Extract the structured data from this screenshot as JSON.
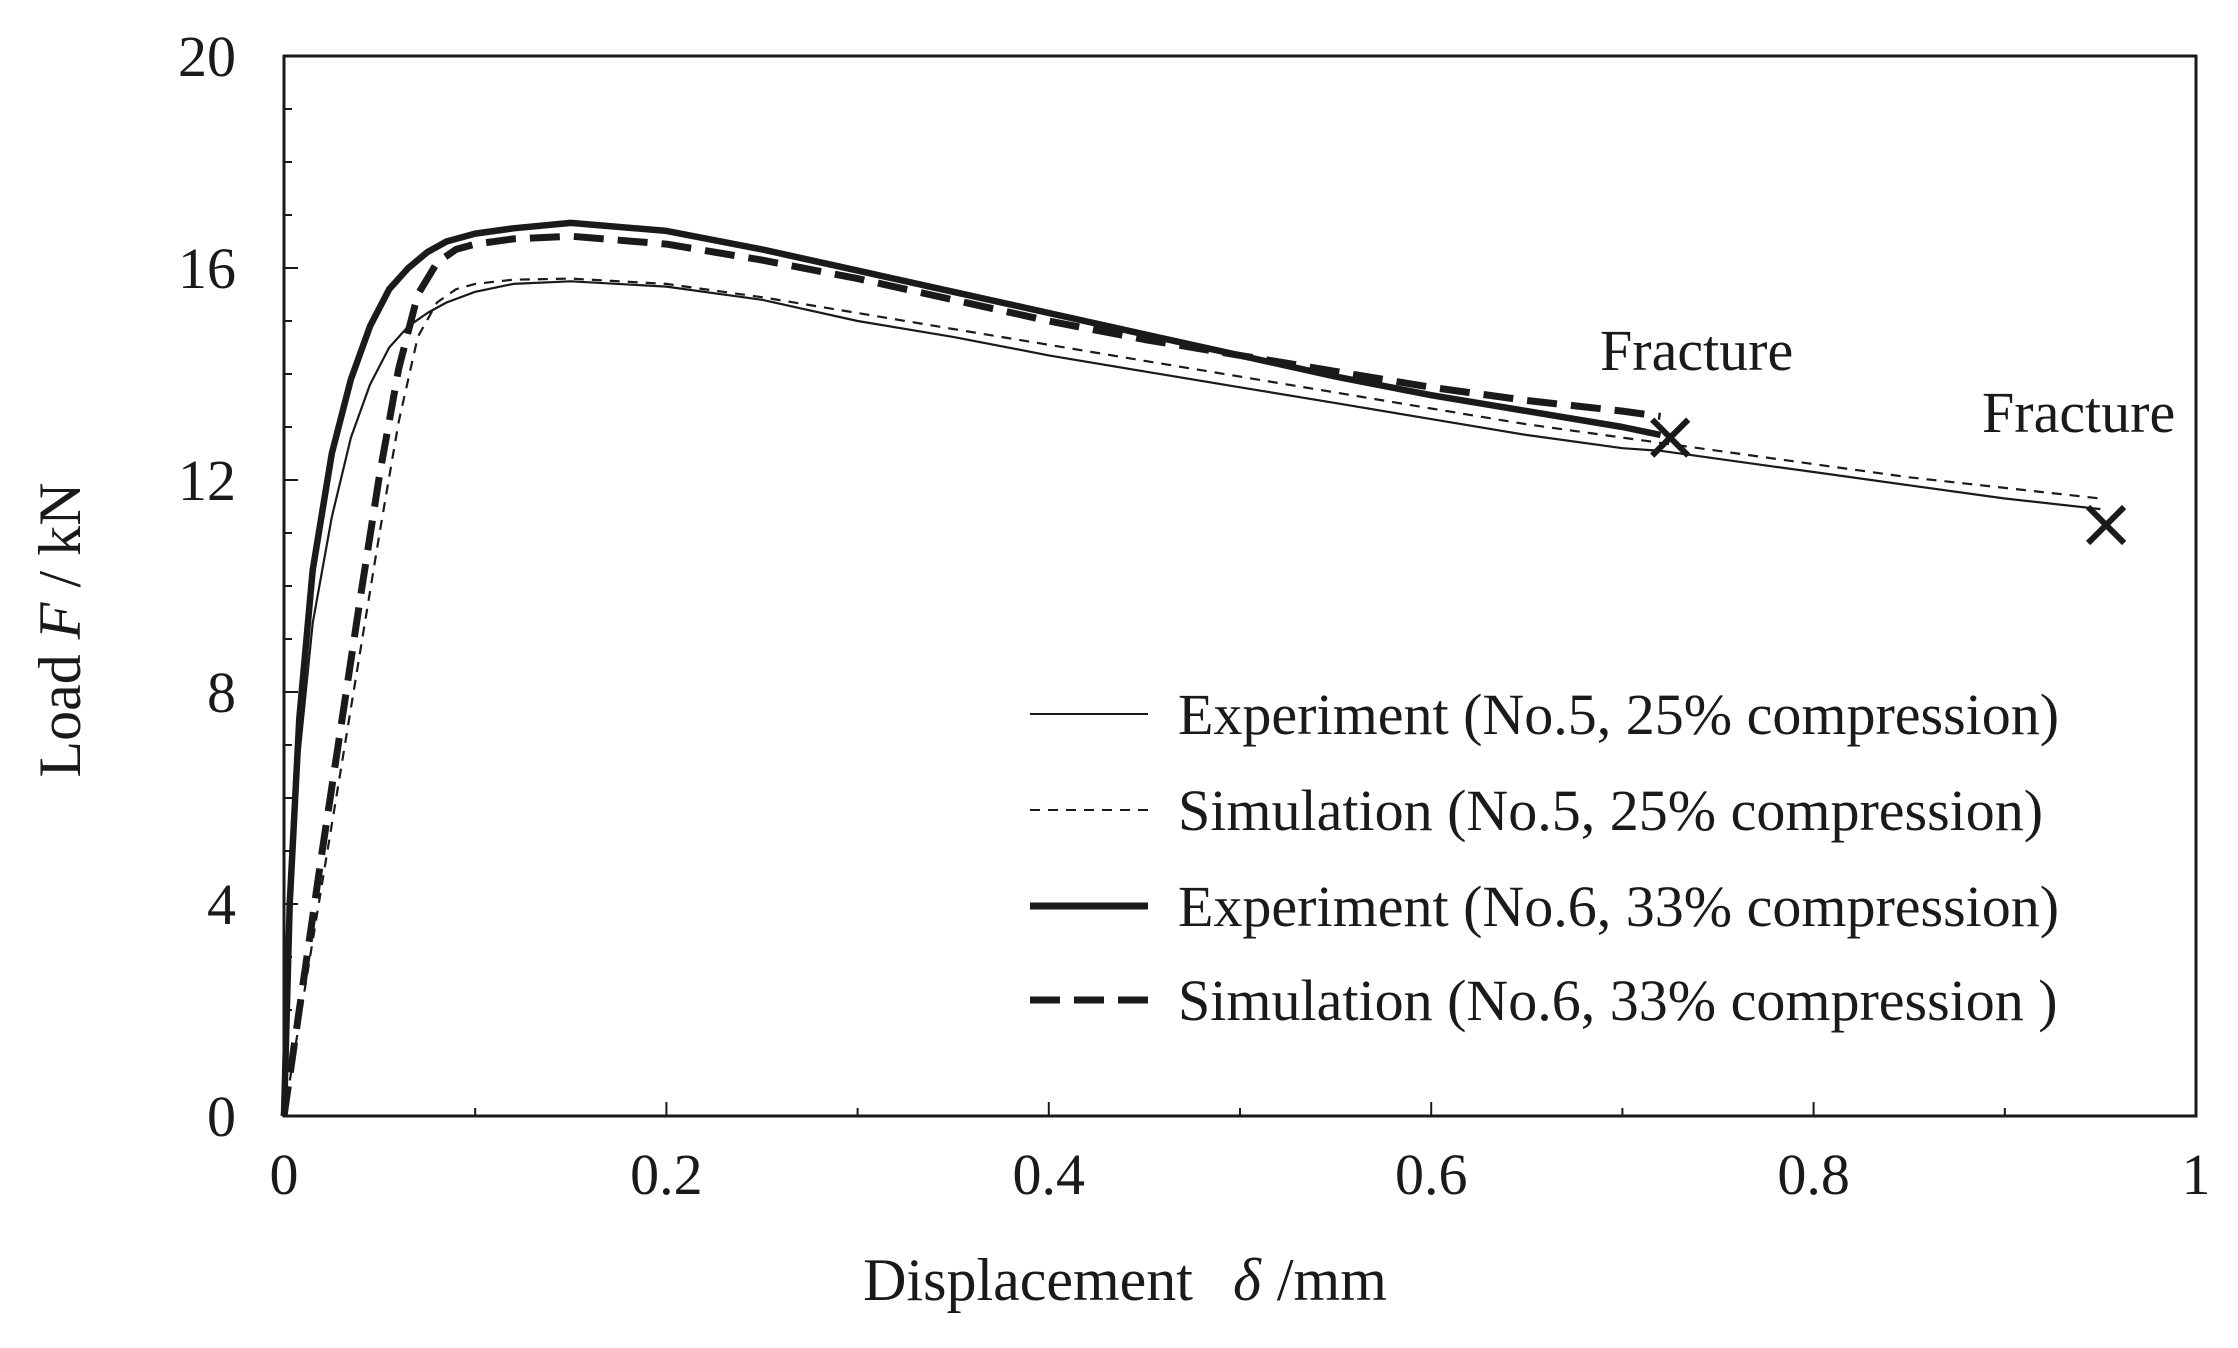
{
  "chart_data": {
    "type": "line",
    "title": "",
    "xlabel": {
      "prefix": "Displacement",
      "symbol": "δ",
      "unit": "/mm"
    },
    "ylabel": {
      "prefix": "Load",
      "symbol": "F",
      "unit": "/ kN"
    },
    "xlim": [
      0,
      1
    ],
    "ylim": [
      0,
      20
    ],
    "x_ticks": [
      0,
      0.2,
      0.4,
      0.6,
      0.8,
      1
    ],
    "x_tick_labels": [
      "0",
      "0.2",
      "0.4",
      "0.6",
      "0.8",
      "1"
    ],
    "y_ticks": [
      0,
      4,
      8,
      12,
      16,
      20
    ],
    "y_tick_labels": [
      "0",
      "4",
      "8",
      "12",
      "16",
      "20"
    ],
    "grid": false,
    "legend_position": "bottom-right",
    "series": [
      {
        "name": "Experiment (No.5, 25% compression)",
        "style": "thin-solid",
        "x": [
          0,
          0.003,
          0.008,
          0.015,
          0.025,
          0.035,
          0.045,
          0.055,
          0.065,
          0.075,
          0.085,
          0.1,
          0.12,
          0.15,
          0.2,
          0.25,
          0.3,
          0.35,
          0.4,
          0.45,
          0.5,
          0.55,
          0.6,
          0.65,
          0.7,
          0.72,
          0.75,
          0.78,
          0.8,
          0.85,
          0.9,
          0.95
        ],
        "y": [
          0,
          3.5,
          6.8,
          9.3,
          11.3,
          12.8,
          13.8,
          14.5,
          14.9,
          15.15,
          15.35,
          15.55,
          15.7,
          15.75,
          15.65,
          15.4,
          15.0,
          14.7,
          14.35,
          14.05,
          13.75,
          13.45,
          13.15,
          12.85,
          12.6,
          12.55,
          12.4,
          12.25,
          12.15,
          11.9,
          11.65,
          11.45
        ]
      },
      {
        "name": "Simulation (No.5, 25% compression)",
        "style": "thin-dashed",
        "x": [
          0,
          0.01,
          0.02,
          0.03,
          0.04,
          0.05,
          0.06,
          0.07,
          0.08,
          0.09,
          0.1,
          0.12,
          0.15,
          0.2,
          0.25,
          0.3,
          0.35,
          0.4,
          0.45,
          0.5,
          0.55,
          0.6,
          0.65,
          0.7,
          0.75,
          0.8,
          0.85,
          0.9,
          0.95
        ],
        "y": [
          0,
          2.2,
          4.4,
          6.6,
          8.8,
          11.0,
          13.1,
          14.7,
          15.35,
          15.6,
          15.7,
          15.78,
          15.8,
          15.7,
          15.45,
          15.15,
          14.85,
          14.55,
          14.25,
          13.95,
          13.65,
          13.35,
          13.05,
          12.8,
          12.55,
          12.3,
          12.05,
          11.85,
          11.65
        ]
      },
      {
        "name": "Experiment (No.6, 33% compression)",
        "style": "thick-solid",
        "x": [
          0,
          0.003,
          0.008,
          0.015,
          0.025,
          0.035,
          0.045,
          0.055,
          0.065,
          0.075,
          0.085,
          0.1,
          0.12,
          0.15,
          0.2,
          0.25,
          0.3,
          0.35,
          0.4,
          0.45,
          0.5,
          0.55,
          0.6,
          0.65,
          0.7,
          0.72
        ],
        "y": [
          0,
          4.0,
          7.5,
          10.3,
          12.5,
          13.9,
          14.9,
          15.6,
          16.0,
          16.3,
          16.5,
          16.65,
          16.75,
          16.85,
          16.7,
          16.35,
          15.95,
          15.55,
          15.15,
          14.75,
          14.35,
          13.95,
          13.6,
          13.3,
          13.0,
          12.85
        ]
      },
      {
        "name": "Simulation (No.6, 33% compression )",
        "style": "thick-dashed",
        "x": [
          0,
          0.01,
          0.02,
          0.03,
          0.04,
          0.05,
          0.06,
          0.07,
          0.08,
          0.09,
          0.1,
          0.12,
          0.15,
          0.2,
          0.25,
          0.3,
          0.35,
          0.4,
          0.45,
          0.5,
          0.55,
          0.6,
          0.65,
          0.7,
          0.72
        ],
        "y": [
          0,
          2.5,
          5.0,
          7.4,
          9.8,
          12.1,
          14.1,
          15.5,
          16.1,
          16.35,
          16.45,
          16.55,
          16.6,
          16.45,
          16.15,
          15.8,
          15.4,
          15.0,
          14.65,
          14.35,
          14.05,
          13.75,
          13.5,
          13.3,
          13.2
        ]
      }
    ],
    "annotations": [
      {
        "text": "Fracture",
        "x": 0.725,
        "y": 12.8
      },
      {
        "text": "Fracture",
        "x": 0.953,
        "y": 11.15
      }
    ]
  },
  "colors": {
    "background": "#ffffff",
    "ink": "#1a1a1a"
  }
}
